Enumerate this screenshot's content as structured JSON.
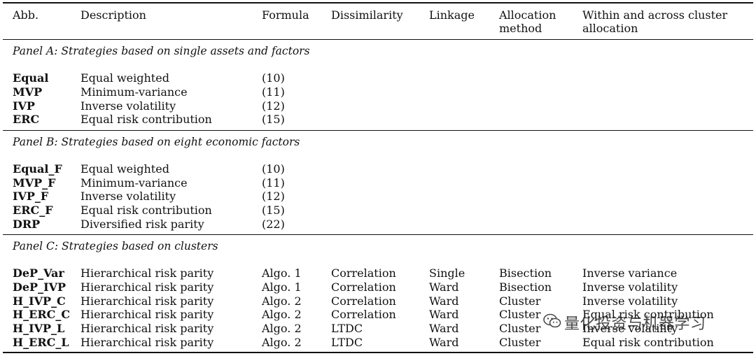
{
  "header": {
    "abb": "Abb.",
    "description": "Description",
    "formula": "Formula",
    "dissimilarity": "Dissimilarity",
    "linkage": "Linkage",
    "allocation_line1": "Allocation",
    "allocation_line2": "method",
    "within_line1": "Within and across cluster",
    "within_line2": "allocation"
  },
  "panels": [
    {
      "title": "Panel A: Strategies based on single assets and factors",
      "rows": [
        {
          "abb": "Equal",
          "description": "Equal weighted",
          "formula": "(10)",
          "dissimilarity": "",
          "linkage": "",
          "allocation": "",
          "within": ""
        },
        {
          "abb": "MVP",
          "description": "Minimum-variance",
          "formula": "(11)",
          "dissimilarity": "",
          "linkage": "",
          "allocation": "",
          "within": ""
        },
        {
          "abb": "IVP",
          "description": "Inverse volatility",
          "formula": "(12)",
          "dissimilarity": "",
          "linkage": "",
          "allocation": "",
          "within": ""
        },
        {
          "abb": "ERC",
          "description": "Equal risk contribution",
          "formula": "(15)",
          "dissimilarity": "",
          "linkage": "",
          "allocation": "",
          "within": ""
        }
      ]
    },
    {
      "title": "Panel B: Strategies based on eight economic factors",
      "rows": [
        {
          "abb": "Equal_F",
          "description": "Equal weighted",
          "formula": "(10)",
          "dissimilarity": "",
          "linkage": "",
          "allocation": "",
          "within": ""
        },
        {
          "abb": "MVP_F",
          "description": "Minimum-variance",
          "formula": "(11)",
          "dissimilarity": "",
          "linkage": "",
          "allocation": "",
          "within": ""
        },
        {
          "abb": "IVP_F",
          "description": "Inverse volatility",
          "formula": "(12)",
          "dissimilarity": "",
          "linkage": "",
          "allocation": "",
          "within": ""
        },
        {
          "abb": "ERC_F",
          "description": "Equal risk contribution",
          "formula": "(15)",
          "dissimilarity": "",
          "linkage": "",
          "allocation": "",
          "within": ""
        },
        {
          "abb": "DRP",
          "description": "Diversified risk parity",
          "formula": "(22)",
          "dissimilarity": "",
          "linkage": "",
          "allocation": "",
          "within": ""
        }
      ]
    },
    {
      "title": "Panel C: Strategies based on clusters",
      "rows": [
        {
          "abb": "DeP_Var",
          "description": "Hierarchical risk parity",
          "formula": "Algo. 1",
          "dissimilarity": "Correlation",
          "linkage": "Single",
          "allocation": "Bisection",
          "within": "Inverse variance"
        },
        {
          "abb": "DeP_IVP",
          "description": "Hierarchical risk parity",
          "formula": "Algo. 1",
          "dissimilarity": "Correlation",
          "linkage": "Ward",
          "allocation": "Bisection",
          "within": "Inverse volatility"
        },
        {
          "abb": "H_IVP_C",
          "description": "Hierarchical risk parity",
          "formula": "Algo. 2",
          "dissimilarity": "Correlation",
          "linkage": "Ward",
          "allocation": "Cluster",
          "within": "Inverse volatility"
        },
        {
          "abb": "H_ERC_C",
          "description": "Hierarchical risk parity",
          "formula": "Algo. 2",
          "dissimilarity": "Correlation",
          "linkage": "Ward",
          "allocation": "Cluster",
          "within": "Equal risk contribution"
        },
        {
          "abb": "H_IVP_L",
          "description": "Hierarchical risk parity",
          "formula": "Algo. 2",
          "dissimilarity": "LTDC",
          "linkage": "Ward",
          "allocation": "Cluster",
          "within": "Inverse volatility"
        },
        {
          "abb": "H_ERC_L",
          "description": "Hierarchical risk parity",
          "formula": "Algo. 2",
          "dissimilarity": "LTDC",
          "linkage": "Ward",
          "allocation": "Cluster",
          "within": "Equal risk contribution"
        }
      ]
    }
  ],
  "watermark": {
    "icon": "wechat-icon",
    "text": "量化投资与机器学习"
  }
}
